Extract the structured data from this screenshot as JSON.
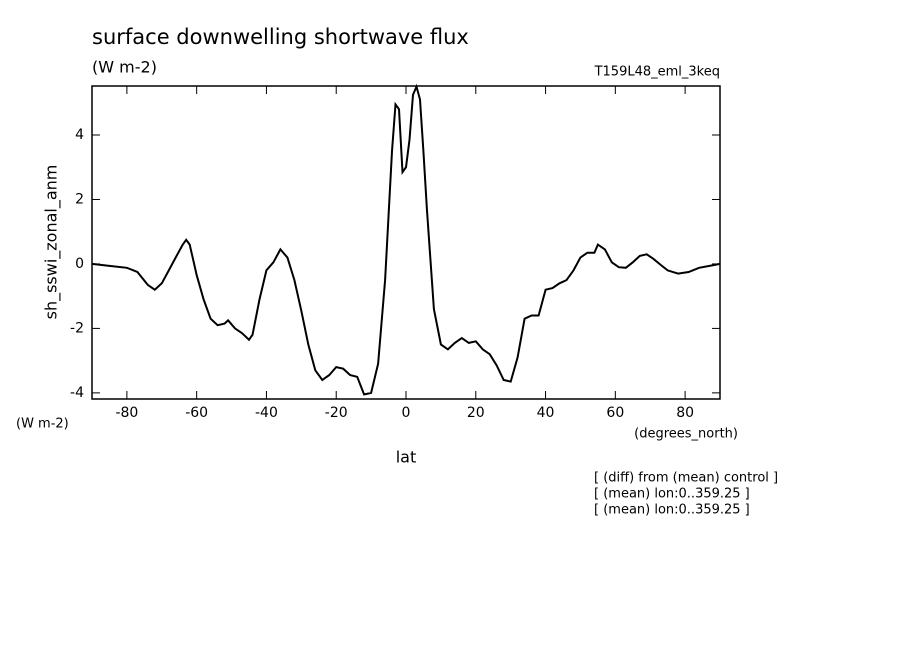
{
  "chart_data": {
    "type": "line",
    "title": "surface downwelling shortwave flux",
    "units": "(W m-2)",
    "run_name": "T159L48_eml_3keq",
    "y_label": "sh_sswi_zonal_anm",
    "y_units": "(W m-2)",
    "x_label": "lat",
    "x_units": "(degrees_north)",
    "notes": [
      "[ (diff) from (mean) control ]",
      "[ (mean) lon:0..359.25 ]",
      "[ (mean) lon:0..359.25 ]"
    ],
    "xlim": [
      -90,
      90
    ],
    "xticks": [
      -80,
      -60,
      -40,
      -20,
      0,
      20,
      40,
      60,
      80
    ],
    "ylim": [
      -4.19,
      5.52
    ],
    "yticks": [
      -4,
      -2,
      0,
      2,
      4
    ],
    "series": [
      {
        "color": "#000000",
        "x": [
          -90,
          -85,
          -80,
          -77,
          -74,
          -72,
          -70,
          -68,
          -66,
          -64,
          -63,
          -62,
          -60,
          -58,
          -56,
          -54,
          -52,
          -51,
          -49,
          -47,
          -45,
          -44,
          -42,
          -40,
          -38,
          -36,
          -34,
          -32,
          -30,
          -28,
          -26,
          -24,
          -22,
          -20,
          -18,
          -16,
          -14,
          -12,
          -10,
          -8,
          -6,
          -4,
          -3,
          -2,
          -1,
          0,
          1,
          2,
          3,
          4,
          5,
          6,
          8,
          10,
          12,
          14,
          16,
          18,
          20,
          22,
          24,
          26,
          28,
          30,
          32,
          34,
          36,
          38,
          40,
          42,
          44,
          46,
          48,
          50,
          52,
          54,
          55,
          57,
          59,
          61,
          63,
          65,
          67,
          69,
          71,
          73,
          75,
          78,
          81,
          84,
          87,
          90
        ],
        "values": [
          0.0,
          -0.06,
          -0.12,
          -0.25,
          -0.65,
          -0.8,
          -0.6,
          -0.2,
          0.2,
          0.6,
          0.75,
          0.6,
          -0.35,
          -1.1,
          -1.7,
          -1.9,
          -1.85,
          -1.75,
          -2.0,
          -2.15,
          -2.35,
          -2.2,
          -1.1,
          -0.2,
          0.05,
          0.45,
          0.2,
          -0.5,
          -1.45,
          -2.5,
          -3.3,
          -3.6,
          -3.45,
          -3.2,
          -3.25,
          -3.45,
          -3.5,
          -4.05,
          -4.0,
          -3.1,
          -0.5,
          3.5,
          4.95,
          4.8,
          2.85,
          3.0,
          3.85,
          5.25,
          5.5,
          5.1,
          3.5,
          1.7,
          -1.4,
          -2.5,
          -2.65,
          -2.45,
          -2.3,
          -2.45,
          -2.4,
          -2.65,
          -2.8,
          -3.15,
          -3.6,
          -3.65,
          -2.9,
          -1.7,
          -1.6,
          -1.6,
          -0.8,
          -0.75,
          -0.6,
          -0.5,
          -0.2,
          0.2,
          0.35,
          0.35,
          0.6,
          0.45,
          0.05,
          -0.1,
          -0.12,
          0.05,
          0.25,
          0.3,
          0.15,
          -0.03,
          -0.2,
          -0.3,
          -0.25,
          -0.12,
          -0.06,
          0.0
        ]
      }
    ]
  }
}
